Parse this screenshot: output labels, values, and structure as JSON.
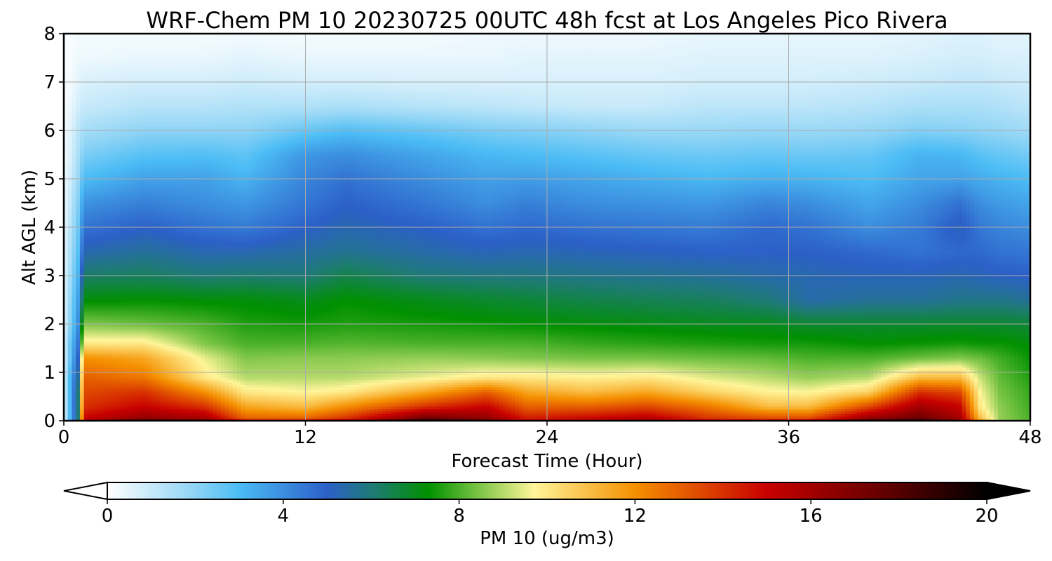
{
  "chart_data": {
    "type": "heatmap",
    "title": "WRF-Chem PM 10  20230725 00UTC 48h fcst at Los Angeles Pico Rivera",
    "xlabel": "Forecast Time (Hour)",
    "ylabel": "Alt AGL (km)",
    "xlim": [
      0,
      48
    ],
    "ylim": [
      0,
      8
    ],
    "xticks": [
      "0",
      "12",
      "24",
      "36",
      "48"
    ],
    "yticks": [
      "0",
      "1",
      "2",
      "3",
      "4",
      "5",
      "6",
      "7",
      "8"
    ],
    "grid": true,
    "colorbar": {
      "label": "PM 10  (ug/m3)",
      "range": [
        0,
        20
      ],
      "ticks": [
        "0",
        "4",
        "8",
        "12",
        "16",
        "20"
      ],
      "extend": "both",
      "stops": [
        {
          "value": 0,
          "color": "#ffffff"
        },
        {
          "value": 2,
          "color": "#8fd4f5"
        },
        {
          "value": 3,
          "color": "#4bbcf5"
        },
        {
          "value": 5,
          "color": "#2c60c8"
        },
        {
          "value": 6,
          "color": "#1f7a78"
        },
        {
          "value": 7.3,
          "color": "#009000"
        },
        {
          "value": 8.3,
          "color": "#6cbf3c"
        },
        {
          "value": 9.7,
          "color": "#fff59a"
        },
        {
          "value": 12,
          "color": "#f59000"
        },
        {
          "value": 15,
          "color": "#c80000"
        },
        {
          "value": 17.5,
          "color": "#6a0000"
        },
        {
          "value": 20,
          "color": "#000000"
        }
      ]
    },
    "heights_km": [
      0,
      0.05,
      0.3,
      0.6,
      0.9,
      1.3,
      1.6,
      2.0,
      2.5,
      3.0,
      3.5,
      4.0,
      4.5,
      5.0,
      5.5,
      6.0,
      6.5,
      7.0,
      7.5,
      8.0
    ],
    "profiles": [
      {
        "hour": 0,
        "values": [
          0.5,
          0.5,
          0.5,
          0.5,
          0.5,
          0.5,
          0.5,
          0.4,
          0.4,
          0.4,
          0.4,
          0.3,
          0.3,
          0.3,
          0.2,
          0.2,
          0.1,
          0.1,
          0.1,
          0.1
        ]
      },
      {
        "hour": 0.3,
        "values": [
          3,
          3,
          3,
          3,
          3,
          2.5,
          2.5,
          2.0,
          1.8,
          1.6,
          1.4,
          1.2,
          1.0,
          0.8,
          0.6,
          0.5,
          0.3,
          0.2,
          0.1,
          0.1
        ]
      },
      {
        "hour": 0.7,
        "values": [
          6,
          6,
          6,
          6,
          5.5,
          5,
          4.5,
          4.0,
          3.6,
          3.2,
          2.8,
          2.5,
          2.2,
          1.8,
          1.5,
          1.2,
          0.8,
          0.5,
          0.3,
          0.2
        ]
      },
      {
        "hour": 1,
        "values": [
          16,
          15,
          14,
          13.5,
          13,
          12,
          10,
          8.5,
          7.2,
          6.2,
          5.3,
          4.6,
          3.9,
          3.0,
          2.3,
          1.6,
          1.0,
          0.7,
          0.3,
          0.2
        ]
      },
      {
        "hour": 4,
        "values": [
          19,
          16.5,
          15,
          14,
          12.5,
          11.5,
          10,
          8.3,
          7.3,
          6.3,
          5.6,
          5.0,
          4.3,
          3.6,
          2.8,
          2.0,
          1.3,
          0.8,
          0.4,
          0.2
        ]
      },
      {
        "hour": 7,
        "values": [
          18,
          16,
          14,
          12,
          10,
          9.5,
          8.5,
          8.0,
          7.2,
          6.0,
          5.3,
          4.6,
          4.0,
          3.6,
          2.9,
          2.0,
          1.3,
          0.8,
          0.4,
          0.2
        ]
      },
      {
        "hour": 9,
        "values": [
          15,
          13,
          11.5,
          10,
          9,
          8.5,
          8.0,
          7.6,
          7.2,
          6.1,
          5.3,
          4.4,
          3.8,
          3.2,
          2.7,
          2.0,
          1.4,
          0.9,
          0.5,
          0.2
        ]
      },
      {
        "hour": 12,
        "values": [
          15,
          13,
          11,
          9.7,
          9,
          8.6,
          8.0,
          7.5,
          7.0,
          6.0,
          5.5,
          5.0,
          4.5,
          4.2,
          3.8,
          2.6,
          1.4,
          0.8,
          0.4,
          0.2
        ]
      },
      {
        "hour": 14,
        "values": [
          16,
          14,
          12,
          10,
          9,
          8.6,
          8.1,
          7.6,
          7.3,
          6.5,
          5.7,
          5.3,
          5.0,
          4.6,
          4.0,
          2.9,
          1.5,
          0.8,
          0.4,
          0.2
        ]
      },
      {
        "hour": 18,
        "values": [
          20,
          17.5,
          14,
          11.5,
          9.5,
          8.7,
          8.0,
          7.5,
          7.0,
          6.0,
          5.4,
          5.0,
          4.5,
          4.0,
          3.5,
          2.6,
          1.3,
          0.7,
          0.4,
          0.2
        ]
      },
      {
        "hour": 21,
        "values": [
          18,
          16.5,
          15,
          13,
          10,
          8.6,
          8.0,
          7.4,
          6.8,
          5.9,
          5.2,
          4.6,
          4.0,
          3.6,
          3.1,
          2.3,
          1.2,
          0.7,
          0.4,
          0.3
        ]
      },
      {
        "hour": 23,
        "values": [
          15,
          14.5,
          13,
          11.5,
          10,
          8.5,
          8.0,
          7.3,
          6.7,
          5.9,
          5.3,
          4.8,
          4.3,
          3.7,
          3.0,
          2.2,
          1.1,
          0.7,
          0.5,
          0.3
        ]
      },
      {
        "hour": 26,
        "values": [
          16,
          15,
          13,
          11,
          9.8,
          8.4,
          7.8,
          7.2,
          6.5,
          5.8,
          5.2,
          4.6,
          4.0,
          3.5,
          2.8,
          2.0,
          1.0,
          0.7,
          0.5,
          0.3
        ]
      },
      {
        "hour": 29,
        "values": [
          17,
          15.5,
          13.5,
          11.5,
          10,
          8.4,
          7.7,
          7.1,
          6.4,
          5.7,
          5.1,
          4.5,
          3.9,
          3.3,
          2.6,
          1.8,
          1.0,
          0.7,
          0.5,
          0.3
        ]
      },
      {
        "hour": 32,
        "values": [
          15,
          14,
          12.5,
          10.5,
          9.4,
          8.3,
          7.6,
          7.0,
          6.3,
          5.6,
          5.0,
          4.4,
          3.8,
          3.1,
          2.5,
          1.8,
          1.2,
          0.8,
          0.6,
          0.4
        ]
      },
      {
        "hour": 35,
        "values": [
          15,
          13.5,
          11,
          9.8,
          9,
          8.2,
          7.5,
          7.0,
          6.0,
          5.4,
          5.0,
          4.8,
          4.2,
          3.3,
          2.6,
          1.9,
          1.2,
          0.8,
          0.6,
          0.4
        ]
      },
      {
        "hour": 37,
        "values": [
          15.5,
          13.5,
          11,
          9.7,
          8.7,
          8.0,
          7.5,
          6.8,
          5.4,
          5.3,
          5.0,
          4.6,
          4.0,
          3.2,
          2.5,
          1.8,
          1.2,
          0.8,
          0.6,
          0.4
        ]
      },
      {
        "hour": 40,
        "values": [
          19,
          16.5,
          13.5,
          10.5,
          9,
          8.0,
          7.3,
          6.8,
          5.6,
          5.2,
          4.8,
          4.0,
          3.5,
          3.0,
          2.6,
          1.9,
          1.3,
          0.9,
          0.6,
          0.4
        ]
      },
      {
        "hour": 42.5,
        "values": [
          19.5,
          17.5,
          16,
          14,
          11,
          8.3,
          7.4,
          6.8,
          5.6,
          5.2,
          4.6,
          4.4,
          4.0,
          3.5,
          3.2,
          2.2,
          1.5,
          1.0,
          0.7,
          0.5
        ]
      },
      {
        "hour": 44.5,
        "values": [
          17,
          16,
          15,
          13.5,
          11,
          8.5,
          7.5,
          6.8,
          5.8,
          5.3,
          4.8,
          5.2,
          4.6,
          3.6,
          3.1,
          2.1,
          1.5,
          1.1,
          0.8,
          0.6
        ]
      },
      {
        "hour": 45.5,
        "values": [
          12,
          11,
          10,
          9.7,
          9.2,
          8.3,
          7.4,
          6.8,
          5.8,
          5.2,
          4.8,
          4.5,
          4.0,
          3.4,
          2.8,
          2.0,
          1.5,
          1.1,
          0.8,
          0.6
        ]
      },
      {
        "hour": 46.5,
        "values": [
          8.8,
          8.7,
          8.6,
          8.4,
          8.2,
          7.9,
          7.4,
          6.8,
          5.8,
          5.1,
          4.6,
          4.2,
          3.7,
          3.2,
          2.6,
          1.9,
          1.4,
          1.0,
          0.7,
          0.5
        ]
      },
      {
        "hour": 48,
        "values": [
          8.1,
          8.0,
          7.9,
          7.8,
          7.6,
          7.4,
          7.2,
          6.7,
          5.6,
          5.0,
          4.5,
          4.0,
          3.5,
          3.0,
          2.4,
          1.7,
          1.2,
          0.9,
          0.7,
          0.5
        ]
      }
    ]
  }
}
